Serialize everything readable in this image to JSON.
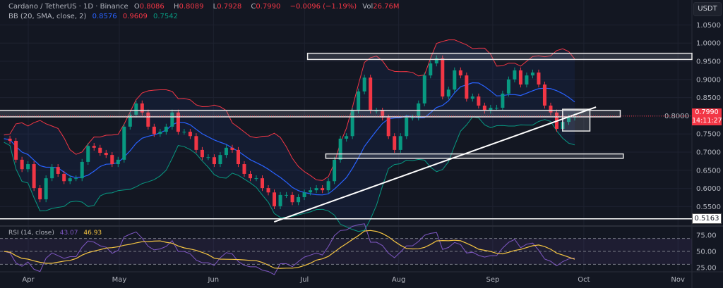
{
  "header": {
    "symbol": "Cardano / TetherUS · 1D · Binance",
    "o_label": "O",
    "o": "0.8086",
    "h_label": "H",
    "h": "0.8089",
    "l_label": "L",
    "l": "0.7928",
    "c_label": "C",
    "c": "0.7990",
    "change": "−0.0096 (−1.19%)",
    "vol_label": "Vol",
    "vol": "26.76M"
  },
  "bb": {
    "label": "BB (20, SMA, close, 2)",
    "basis": "0.8576",
    "upper": "0.9609",
    "lower": "0.7542"
  },
  "rsi": {
    "label": "RSI (14, close)",
    "value": "43.07",
    "ma": "46.93"
  },
  "currency": "USDT",
  "price_tag": {
    "price": "0.7990",
    "countdown": "14:11:27"
  },
  "support_tag": "0.5163",
  "colors": {
    "up": "#089981",
    "down": "#f23645",
    "basis": "#2962ff",
    "upper": "#f23645",
    "lower": "#089981",
    "rsi": "#7e57c2",
    "rsi_ma": "#f5c542",
    "background": "#131722"
  },
  "chart_data": {
    "type": "candlestick",
    "title": "Cardano / TetherUS · 1D · Binance",
    "x_start": "2024-03-24",
    "x_end": "2024-09-28",
    "close": [
      0.737,
      0.731,
      0.679,
      0.653,
      0.667,
      0.601,
      0.57,
      0.628,
      0.659,
      0.64,
      0.62,
      0.628,
      0.628,
      0.673,
      0.717,
      0.712,
      0.698,
      0.692,
      0.667,
      0.679,
      0.77,
      0.803,
      0.834,
      0.809,
      0.77,
      0.75,
      0.756,
      0.77,
      0.809,
      0.756,
      0.756,
      0.744,
      0.706,
      0.686,
      0.686,
      0.667,
      0.692,
      0.712,
      0.706,
      0.667,
      0.64,
      0.628,
      0.628,
      0.601,
      0.589,
      0.551,
      0.582,
      0.582,
      0.562,
      0.576,
      0.589,
      0.595,
      0.601,
      0.595,
      0.62,
      0.679,
      0.737,
      0.744,
      0.814,
      0.867,
      0.905,
      0.814,
      0.814,
      0.795,
      0.744,
      0.706,
      0.744,
      0.795,
      0.795,
      0.834,
      0.911,
      0.944,
      0.958,
      0.853,
      0.872,
      0.925,
      0.911,
      0.847,
      0.853,
      0.828,
      0.814,
      0.822,
      0.822,
      0.861,
      0.9,
      0.925,
      0.886,
      0.911,
      0.919,
      0.886,
      0.828,
      0.809,
      0.764,
      0.783,
      0.795,
      0.799
    ],
    "y_ticks": [
      "1.0500",
      "1.0000",
      "0.9500",
      "0.9000",
      "0.8500",
      "0.8000",
      "0.7500",
      "0.7000",
      "0.6500",
      "0.6000",
      "0.5500"
    ],
    "ylim": [
      0.49,
      1.08
    ],
    "x_ticks": [
      {
        "label": "Apr",
        "date": "2024-04-01"
      },
      {
        "label": "May",
        "date": "2024-05-01"
      },
      {
        "label": "Jun",
        "date": "2024-06-01"
      },
      {
        "label": "Jul",
        "date": "2024-07-01"
      },
      {
        "label": "Aug",
        "date": "2024-08-01"
      },
      {
        "label": "Sep",
        "date": "2024-09-01"
      },
      {
        "label": "Oct",
        "date": "2024-10-01"
      },
      {
        "label": "Nov",
        "date": "2024-11-01"
      }
    ],
    "rsi_ticks": [
      "75.00",
      "50.00",
      "25.00"
    ],
    "rsi_levels": [
      70,
      50,
      30
    ],
    "current_price": 0.799,
    "annotations": {
      "zones": [
        {
          "from": "2024-07-02",
          "to": "2024-11-30",
          "top": 0.972,
          "bottom": 0.955
        },
        {
          "from": "2024-03-20",
          "to": "2024-10-13",
          "top": 0.815,
          "bottom": 0.797
        },
        {
          "from": "2024-07-08",
          "to": "2024-10-14",
          "top": 0.695,
          "bottom": 0.683
        },
        {
          "from": "2024-09-24",
          "to": "2024-10-03",
          "top": 0.818,
          "bottom": 0.758
        }
      ],
      "support_level": 0.5163,
      "trendline": [
        {
          "date": "2024-06-21",
          "price": 0.508
        },
        {
          "date": "2024-10-05",
          "price": 0.824
        }
      ]
    }
  }
}
